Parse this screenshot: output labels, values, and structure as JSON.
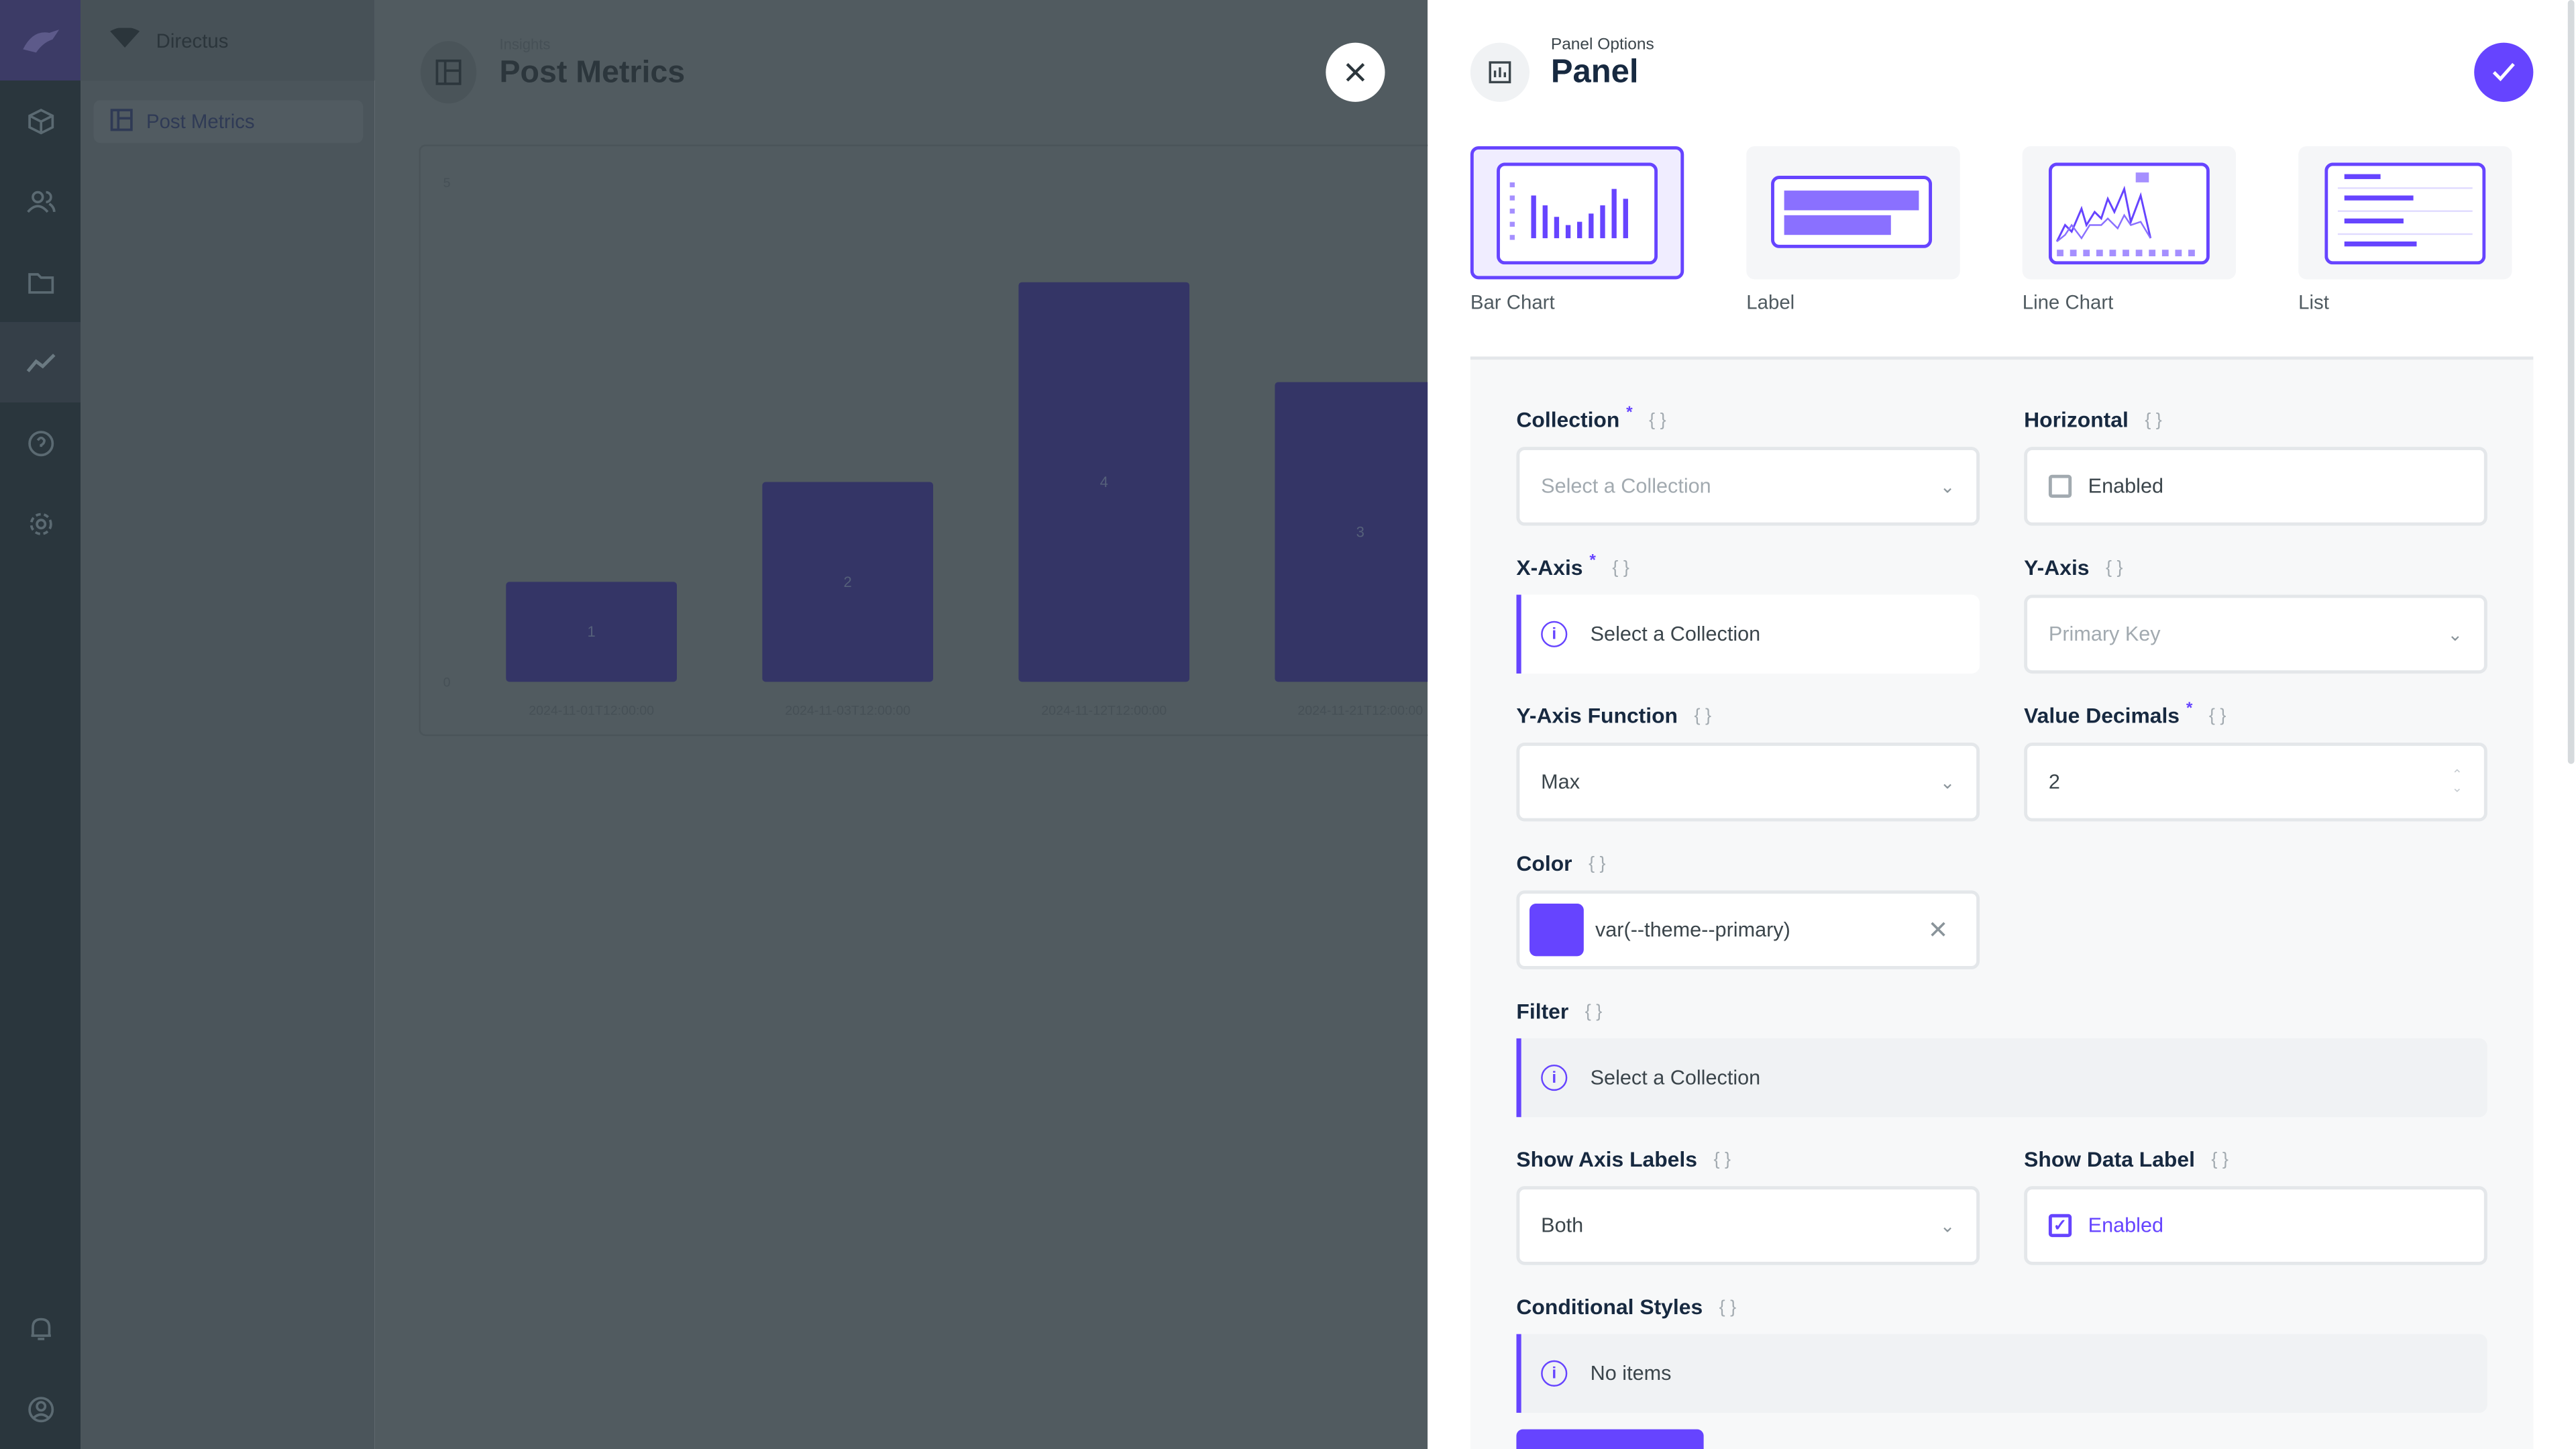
{
  "app": {
    "name": "Directus",
    "brand_color": "#6644ff"
  },
  "nav": {
    "icons": [
      "box-icon",
      "users-icon",
      "folder-icon",
      "insights-icon",
      "help-icon",
      "settings-icon",
      "bell-icon",
      "user-icon"
    ],
    "active": "insights-icon"
  },
  "sidebar": {
    "title": "Directus",
    "items": [
      {
        "label": "Post Metrics"
      }
    ]
  },
  "header": {
    "breadcrumb": "Insights",
    "title": "Post Metrics"
  },
  "chart_data": {
    "type": "bar",
    "categories": [
      "2024-11-01T12:00:00",
      "2024-11-03T12:00:00",
      "2024-11-12T12:00:00",
      "2024-11-21T12:00:00"
    ],
    "values": [
      1,
      2,
      4,
      3
    ],
    "data_labels": [
      "1",
      "2",
      "4",
      "3"
    ],
    "ylim": [
      0,
      5
    ],
    "yticks": [
      "0",
      "5"
    ],
    "grid": false
  },
  "drawer": {
    "subtitle": "Panel Options",
    "title": "Panel",
    "types": [
      {
        "label": "Bar Chart",
        "selected": true
      },
      {
        "label": "Label"
      },
      {
        "label": "Line Chart"
      },
      {
        "label": "List"
      }
    ],
    "fields": {
      "collection": {
        "label": "Collection",
        "placeholder": "Select a Collection"
      },
      "horizontal": {
        "label": "Horizontal",
        "checkbox": "Enabled",
        "checked": false
      },
      "xaxis": {
        "label": "X-Axis",
        "notice": "Select a Collection"
      },
      "yaxis": {
        "label": "Y-Axis",
        "placeholder": "Primary Key"
      },
      "yfunc": {
        "label": "Y-Axis Function",
        "value": "Max"
      },
      "decimals": {
        "label": "Value Decimals",
        "value": "2"
      },
      "color": {
        "label": "Color",
        "value": "var(--theme--primary)",
        "swatch": "#6644ff"
      },
      "filter": {
        "label": "Filter",
        "notice": "Select a Collection"
      },
      "axislabels": {
        "label": "Show Axis Labels",
        "value": "Both"
      },
      "datalabel": {
        "label": "Show Data Label",
        "checkbox": "Enabled",
        "checked": true
      },
      "condstyles": {
        "label": "Conditional Styles",
        "notice": "No items"
      }
    },
    "required_mark": "*"
  }
}
